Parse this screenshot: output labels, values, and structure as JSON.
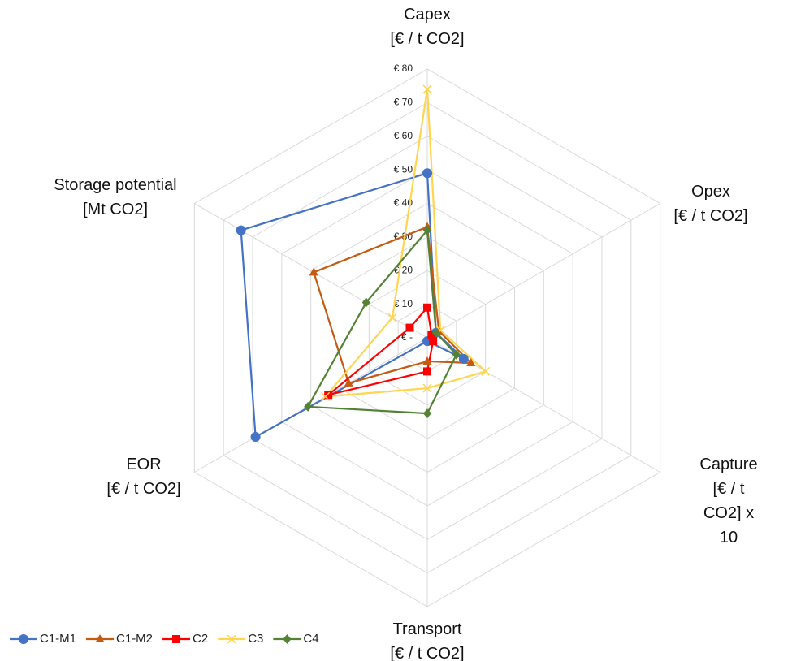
{
  "chart_data": {
    "type": "radar",
    "categories": [
      "Capex\n[€ / t CO2]",
      "Opex\n[€ / t CO2]",
      "Capture\n[€ / t CO2] x 10",
      "Transport\n[€ / t CO2]",
      "EOR\n[€ / t CO2]",
      "Storage potential\n[Mt CO2]"
    ],
    "series": [
      {
        "name": "C1-M1",
        "color": "#4472c4",
        "marker": "circle",
        "values": [
          49,
          3,
          12.5,
          1,
          59,
          64
        ]
      },
      {
        "name": "C1-M2",
        "color": "#c55a11",
        "marker": "triangle",
        "values": [
          33,
          4,
          15,
          7,
          27,
          39
        ]
      },
      {
        "name": "C2",
        "color": "#ff0000",
        "marker": "square",
        "values": [
          9,
          1.5,
          2,
          10,
          34,
          6
        ]
      },
      {
        "name": "C3",
        "color": "#ffd54f",
        "marker": "x",
        "values": [
          74,
          4.5,
          20,
          15,
          35,
          12
        ]
      },
      {
        "name": "C4",
        "color": "#548235",
        "marker": "diamond",
        "values": [
          32,
          3,
          10,
          22.5,
          41,
          21
        ]
      }
    ],
    "ylim": [
      0,
      80
    ],
    "yticks": [
      {
        "value": 0,
        "label": "€ -"
      },
      {
        "value": 10,
        "label": "€ 10"
      },
      {
        "value": 20,
        "label": "€ 20"
      },
      {
        "value": 30,
        "label": "€ 30"
      },
      {
        "value": 40,
        "label": "€ 40"
      },
      {
        "value": 50,
        "label": "€ 50"
      },
      {
        "value": 60,
        "label": "€ 60"
      },
      {
        "value": 70,
        "label": "€ 70"
      },
      {
        "value": 80,
        "label": "€ 80"
      }
    ],
    "grid": true,
    "legend": "bottom-left"
  }
}
